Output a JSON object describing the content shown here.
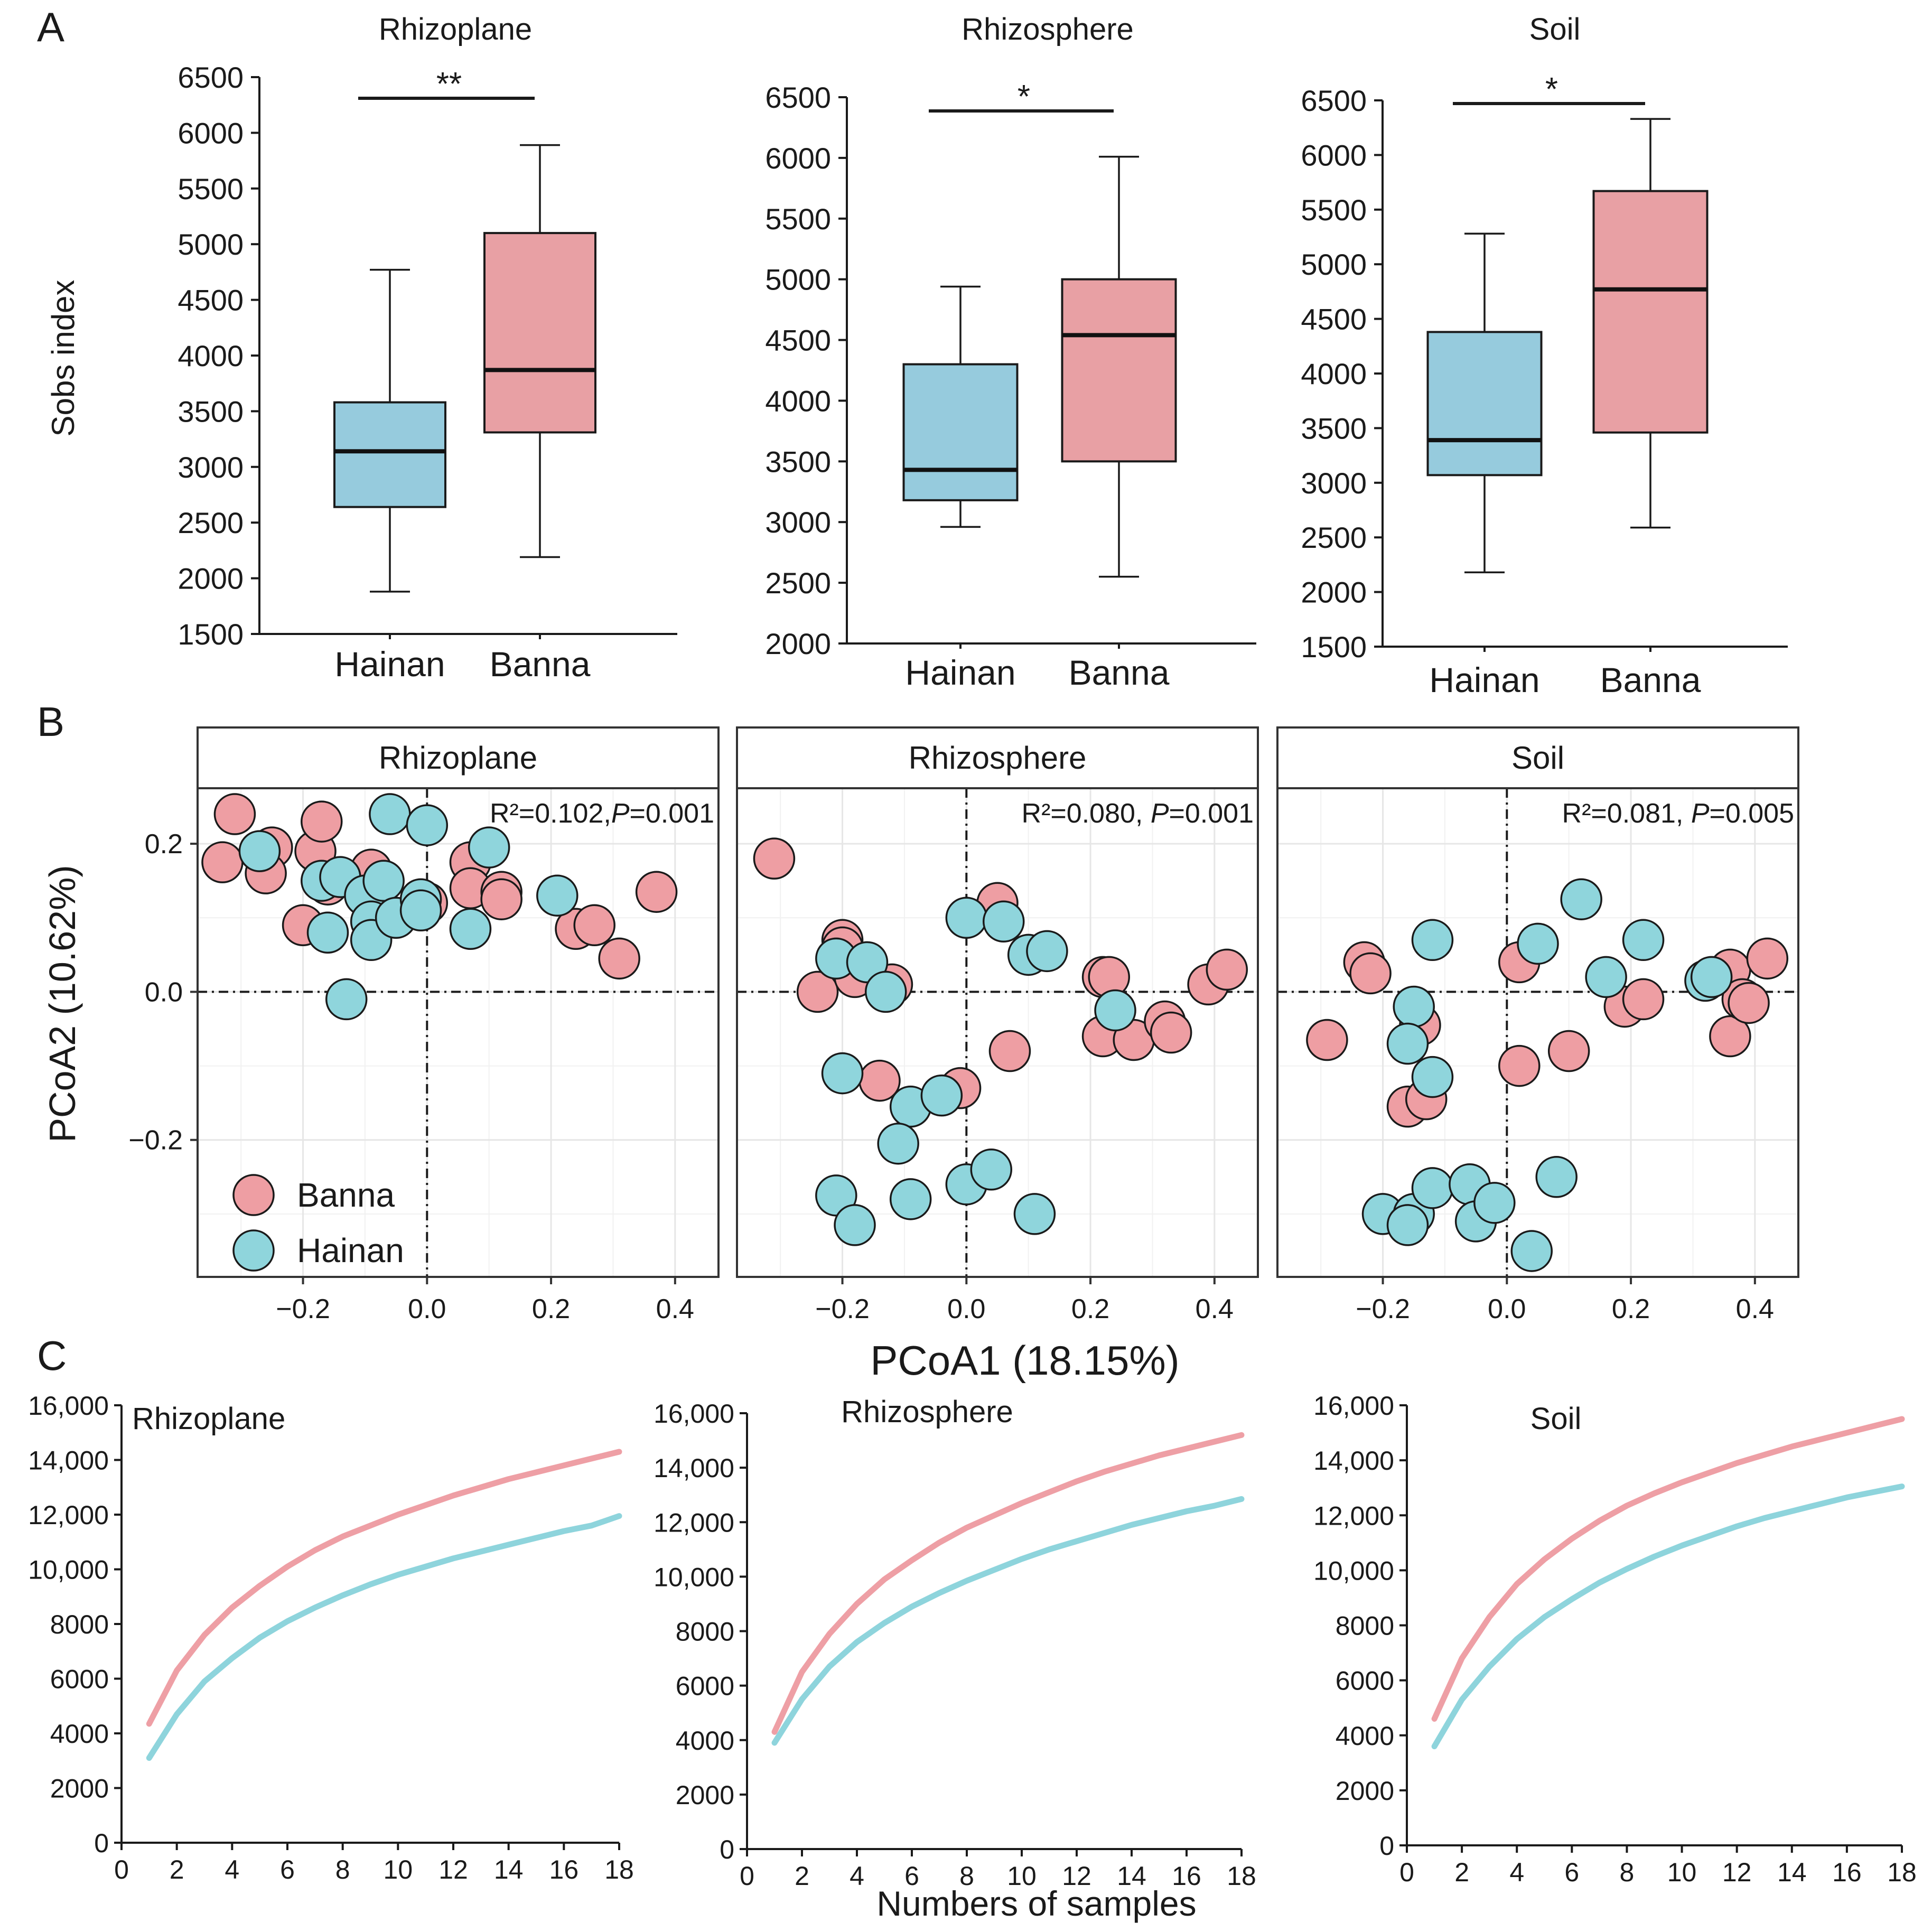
{
  "colors": {
    "banna": "#E8A0A4",
    "hainan": "#96CBDD",
    "banna_curve": "#EE9FA5",
    "hainan_curve": "#8ED4DC",
    "point_banna": "#EE9EA3",
    "point_hainan": "#8FD5DC"
  },
  "panels": {
    "A": "A",
    "B": "B",
    "C": "C"
  },
  "chart_data": [
    {
      "id": "A",
      "type": "box",
      "ylabel": "Sobs index",
      "categories": [
        "Hainan",
        "Banna"
      ],
      "plots": [
        {
          "title": "Rhizoplane",
          "ylim": [
            1500,
            6500
          ],
          "ticks": [
            1500,
            2000,
            2500,
            3000,
            3500,
            4000,
            4500,
            5000,
            5500,
            6000,
            6500
          ],
          "sig": "**",
          "boxes": [
            {
              "group": "Hainan",
              "min": 1880,
              "q1": 2640,
              "median": 3140,
              "q3": 3580,
              "max": 4770
            },
            {
              "group": "Banna",
              "min": 2190,
              "q1": 3310,
              "median": 3870,
              "q3": 5100,
              "max": 5890
            }
          ]
        },
        {
          "title": "Rhizosphere",
          "ylim": [
            2000,
            6500
          ],
          "ticks": [
            2000,
            2500,
            3000,
            3500,
            4000,
            4500,
            5000,
            5500,
            6000,
            6500
          ],
          "sig": "*",
          "boxes": [
            {
              "group": "Hainan",
              "min": 2960,
              "q1": 3180,
              "median": 3430,
              "q3": 4300,
              "max": 4940
            },
            {
              "group": "Banna",
              "min": 2550,
              "q1": 3500,
              "median": 4540,
              "q3": 5000,
              "max": 6010
            }
          ]
        },
        {
          "title": "Soil",
          "ylim": [
            1500,
            6500
          ],
          "ticks": [
            1500,
            2000,
            2500,
            3000,
            3500,
            4000,
            4500,
            5000,
            5500,
            6000,
            6500
          ],
          "sig": "*",
          "boxes": [
            {
              "group": "Hainan",
              "min": 2180,
              "q1": 3070,
              "median": 3390,
              "q3": 4380,
              "max": 5280
            },
            {
              "group": "Banna",
              "min": 2590,
              "q1": 3460,
              "median": 4770,
              "q3": 5670,
              "max": 6330
            }
          ]
        }
      ]
    },
    {
      "id": "B",
      "type": "scatter",
      "xlabel": "PCoA1 (18.15%)",
      "ylabel": "PCoA2 (10.62%)",
      "xlim": [
        -0.37,
        0.47
      ],
      "ylim": [
        -0.385,
        0.275
      ],
      "xticks": [
        -0.2,
        0.0,
        0.2,
        0.4
      ],
      "xtick_labels": [
        "−0.2",
        "0.0",
        "0.2",
        "0.4"
      ],
      "yticks": [
        -0.2,
        0.0,
        0.2
      ],
      "ytick_labels": [
        "−0.2",
        "0.0",
        "0.2"
      ],
      "legend": [
        "Banna",
        "Hainan"
      ],
      "facets": [
        {
          "title": "Rhizoplane",
          "stat": "R²=0.102,",
          "p_label": "P",
          "p_value": "=0.001",
          "banna": [
            [
              -0.31,
              0.24
            ],
            [
              -0.33,
              0.175
            ],
            [
              -0.25,
              0.195
            ],
            [
              -0.26,
              0.16
            ],
            [
              -0.18,
              0.19
            ],
            [
              -0.17,
              0.23
            ],
            [
              -0.16,
              0.145
            ],
            [
              -0.2,
              0.09
            ],
            [
              -0.09,
              0.165
            ],
            [
              0.0,
              0.12
            ],
            [
              0.07,
              0.175
            ],
            [
              0.07,
              0.14
            ],
            [
              0.12,
              0.135
            ],
            [
              0.12,
              0.125
            ],
            [
              0.24,
              0.085
            ],
            [
              0.27,
              0.09
            ],
            [
              0.31,
              0.045
            ],
            [
              0.37,
              0.135
            ]
          ],
          "hainan": [
            [
              -0.27,
              0.19
            ],
            [
              -0.17,
              0.15
            ],
            [
              -0.16,
              0.08
            ],
            [
              -0.14,
              0.155
            ],
            [
              -0.1,
              0.13
            ],
            [
              -0.07,
              0.15
            ],
            [
              -0.09,
              0.095
            ],
            [
              -0.09,
              0.07
            ],
            [
              -0.06,
              0.24
            ],
            [
              -0.05,
              0.1
            ],
            [
              -0.01,
              0.125
            ],
            [
              0.0,
              0.225
            ],
            [
              -0.01,
              0.11
            ],
            [
              0.07,
              0.085
            ],
            [
              0.1,
              0.195
            ],
            [
              0.21,
              0.13
            ],
            [
              -0.13,
              -0.01
            ]
          ]
        },
        {
          "title": "Rhizosphere",
          "stat": "R²=0.080, ",
          "p_label": "P",
          "p_value": "=0.001",
          "banna": [
            [
              -0.31,
              0.18
            ],
            [
              -0.24,
              0.0
            ],
            [
              -0.2,
              0.07
            ],
            [
              -0.2,
              0.06
            ],
            [
              -0.18,
              0.02
            ],
            [
              -0.12,
              0.01
            ],
            [
              -0.14,
              -0.12
            ],
            [
              -0.01,
              -0.13
            ],
            [
              0.05,
              0.12
            ],
            [
              0.07,
              -0.08
            ],
            [
              0.22,
              0.02
            ],
            [
              0.23,
              0.02
            ],
            [
              0.22,
              -0.06
            ],
            [
              0.27,
              -0.065
            ],
            [
              0.32,
              -0.04
            ],
            [
              0.33,
              -0.055
            ],
            [
              0.39,
              0.01
            ],
            [
              0.42,
              0.03
            ]
          ],
          "hainan": [
            [
              -0.21,
              0.045
            ],
            [
              -0.16,
              0.04
            ],
            [
              -0.13,
              0.0
            ],
            [
              -0.2,
              -0.11
            ],
            [
              -0.09,
              -0.155
            ],
            [
              -0.11,
              -0.205
            ],
            [
              -0.04,
              -0.14
            ],
            [
              0.0,
              0.1
            ],
            [
              0.06,
              0.095
            ],
            [
              0.1,
              0.05
            ],
            [
              0.13,
              0.055
            ],
            [
              0.24,
              -0.025
            ],
            [
              -0.21,
              -0.275
            ],
            [
              -0.18,
              -0.315
            ],
            [
              -0.09,
              -0.28
            ],
            [
              0.0,
              -0.26
            ],
            [
              0.04,
              -0.24
            ],
            [
              0.11,
              -0.3
            ]
          ]
        },
        {
          "title": "Soil",
          "stat": "R²=0.081, ",
          "p_label": "P",
          "p_value": "=0.005",
          "banna": [
            [
              -0.29,
              -0.065
            ],
            [
              -0.23,
              0.04
            ],
            [
              -0.22,
              0.025
            ],
            [
              -0.14,
              -0.045
            ],
            [
              -0.16,
              -0.155
            ],
            [
              -0.13,
              -0.145
            ],
            [
              0.02,
              0.04
            ],
            [
              0.02,
              -0.1
            ],
            [
              0.1,
              -0.08
            ],
            [
              0.19,
              -0.02
            ],
            [
              0.22,
              -0.01
            ],
            [
              0.36,
              0.03
            ],
            [
              0.36,
              -0.06
            ],
            [
              0.38,
              -0.01
            ],
            [
              0.39,
              -0.015
            ],
            [
              0.42,
              0.045
            ]
          ],
          "hainan": [
            [
              -0.12,
              0.07
            ],
            [
              -0.15,
              -0.02
            ],
            [
              -0.16,
              -0.07
            ],
            [
              -0.12,
              -0.115
            ],
            [
              0.05,
              0.065
            ],
            [
              0.12,
              0.125
            ],
            [
              0.16,
              0.02
            ],
            [
              0.22,
              0.07
            ],
            [
              0.32,
              0.015
            ],
            [
              0.33,
              0.02
            ],
            [
              -0.2,
              -0.3
            ],
            [
              -0.15,
              -0.3
            ],
            [
              -0.16,
              -0.315
            ],
            [
              -0.12,
              -0.265
            ],
            [
              -0.06,
              -0.26
            ],
            [
              -0.05,
              -0.31
            ],
            [
              -0.02,
              -0.285
            ],
            [
              0.08,
              -0.25
            ],
            [
              0.04,
              -0.35
            ]
          ]
        }
      ]
    },
    {
      "id": "C",
      "type": "line",
      "xlabel": "Numbers of samples",
      "xlim": [
        0,
        18
      ],
      "ylim": [
        0,
        16000
      ],
      "xticks": [
        0,
        2,
        4,
        6,
        8,
        10,
        12,
        14,
        16,
        18
      ],
      "yticks": [
        0,
        2000,
        4000,
        6000,
        8000,
        10000,
        12000,
        14000,
        16000
      ],
      "ytick_labels": [
        "0",
        "2000",
        "4000",
        "6000",
        "8000",
        "10,000",
        "12,000",
        "14,000",
        "16,000"
      ],
      "plots": [
        {
          "title": "Rhizoplane",
          "series": [
            {
              "name": "Banna",
              "x": [
                1,
                2,
                3,
                4,
                5,
                6,
                7,
                8,
                9,
                10,
                11,
                12,
                13,
                14,
                15,
                16,
                17,
                18
              ],
              "values": [
                4350,
                6300,
                7600,
                8600,
                9400,
                10100,
                10700,
                11200,
                11600,
                12000,
                12350,
                12700,
                13000,
                13300,
                13550,
                13800,
                14050,
                14300
              ]
            },
            {
              "name": "Hainan",
              "x": [
                1,
                2,
                3,
                4,
                5,
                6,
                7,
                8,
                9,
                10,
                11,
                12,
                13,
                14,
                15,
                16,
                17,
                18
              ],
              "values": [
                3100,
                4700,
                5900,
                6750,
                7500,
                8100,
                8600,
                9050,
                9450,
                9800,
                10100,
                10400,
                10650,
                10900,
                11150,
                11400,
                11600,
                11950
              ]
            }
          ]
        },
        {
          "title": "Rhizosphere",
          "series": [
            {
              "name": "Banna",
              "x": [
                1,
                2,
                3,
                4,
                5,
                6,
                7,
                8,
                9,
                10,
                11,
                12,
                13,
                14,
                15,
                16,
                17,
                18
              ],
              "values": [
                4300,
                6500,
                7900,
                9000,
                9900,
                10600,
                11250,
                11800,
                12250,
                12700,
                13100,
                13500,
                13850,
                14150,
                14450,
                14700,
                14950,
                15200
              ]
            },
            {
              "name": "Hainan",
              "x": [
                1,
                2,
                3,
                4,
                5,
                6,
                7,
                8,
                9,
                10,
                11,
                12,
                13,
                14,
                15,
                16,
                17,
                18
              ],
              "values": [
                3900,
                5500,
                6700,
                7600,
                8300,
                8900,
                9400,
                9850,
                10250,
                10650,
                11000,
                11300,
                11600,
                11900,
                12150,
                12400,
                12600,
                12850
              ]
            }
          ]
        },
        {
          "title": "Soil",
          "series": [
            {
              "name": "Banna",
              "x": [
                1,
                2,
                3,
                4,
                5,
                6,
                7,
                8,
                9,
                10,
                11,
                12,
                13,
                14,
                15,
                16,
                17,
                18
              ],
              "values": [
                4600,
                6800,
                8300,
                9500,
                10400,
                11150,
                11800,
                12350,
                12800,
                13200,
                13550,
                13900,
                14200,
                14500,
                14750,
                15000,
                15250,
                15500
              ]
            },
            {
              "name": "Hainan",
              "x": [
                1,
                2,
                3,
                4,
                5,
                6,
                7,
                8,
                9,
                10,
                11,
                12,
                13,
                14,
                15,
                16,
                17,
                18
              ],
              "values": [
                3600,
                5300,
                6500,
                7500,
                8300,
                8950,
                9550,
                10050,
                10500,
                10900,
                11250,
                11600,
                11900,
                12150,
                12400,
                12650,
                12850,
                13050
              ]
            }
          ]
        }
      ]
    }
  ]
}
